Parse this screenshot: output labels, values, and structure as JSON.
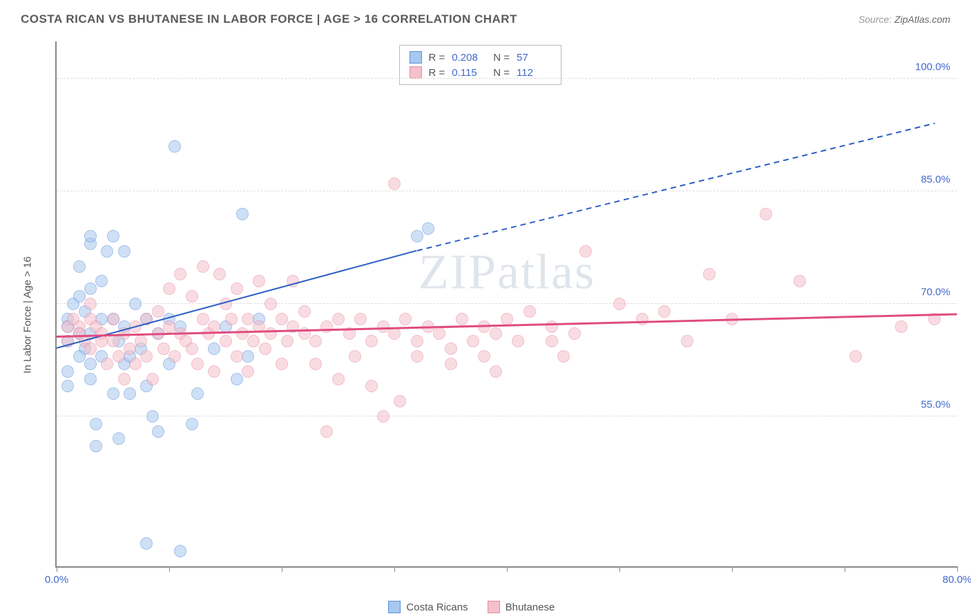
{
  "header": {
    "title": "COSTA RICAN VS BHUTANESE IN LABOR FORCE | AGE > 16 CORRELATION CHART",
    "source_label": "Source:",
    "source_value": "ZipAtlas.com"
  },
  "chart": {
    "type": "scatter",
    "ylabel": "In Labor Force | Age > 16",
    "background_color": "#ffffff",
    "grid_color": "#dddddd",
    "grid_dash": true,
    "axis_color": "#888888",
    "xlim": [
      0,
      80
    ],
    "ylim": [
      35,
      105
    ],
    "ytick_values": [
      55,
      70,
      85,
      100
    ],
    "ytick_labels": [
      "55.0%",
      "70.0%",
      "85.0%",
      "100.0%"
    ],
    "xtick_values": [
      0,
      10,
      20,
      30,
      40,
      50,
      60,
      70,
      80
    ],
    "xtick_labels_shown": {
      "0": "0.0%",
      "80": "80.0%"
    },
    "point_radius": 9,
    "point_opacity": 0.55,
    "label_fontsize": 15,
    "tick_color": "#4169cc",
    "series": [
      {
        "name": "Costa Ricans",
        "fill_color": "#a8c8f0",
        "stroke_color": "#5a8fd6",
        "R": "0.208",
        "N": "57",
        "trend": {
          "x1": 0,
          "y1": 64,
          "x2_solid": 32,
          "y2_solid": 77,
          "x2_dash": 78,
          "y2_dash": 94,
          "color": "#2d5fc4",
          "width": 2
        },
        "points": [
          [
            1,
            68
          ],
          [
            1,
            67
          ],
          [
            1,
            65
          ],
          [
            1.5,
            70
          ],
          [
            2,
            66
          ],
          [
            2,
            71
          ],
          [
            2,
            75
          ],
          [
            2.5,
            69
          ],
          [
            2.5,
            64
          ],
          [
            3,
            78
          ],
          [
            3,
            79
          ],
          [
            3,
            72
          ],
          [
            3,
            66
          ],
          [
            3,
            60
          ],
          [
            3.5,
            54
          ],
          [
            3.5,
            51
          ],
          [
            4,
            68
          ],
          [
            4,
            73
          ],
          [
            4.5,
            77
          ],
          [
            5,
            79
          ],
          [
            5,
            68
          ],
          [
            5,
            58
          ],
          [
            5.5,
            52
          ],
          [
            5.5,
            65
          ],
          [
            6,
            77
          ],
          [
            6,
            67
          ],
          [
            6,
            62
          ],
          [
            6.5,
            58
          ],
          [
            7,
            70
          ],
          [
            7.5,
            64
          ],
          [
            8,
            68
          ],
          [
            8,
            59
          ],
          [
            8.5,
            55
          ],
          [
            9,
            53
          ],
          [
            9,
            66
          ],
          [
            10,
            68
          ],
          [
            10,
            62
          ],
          [
            10.5,
            91
          ],
          [
            11,
            67
          ],
          [
            12,
            54
          ],
          [
            12.5,
            58
          ],
          [
            14,
            64
          ],
          [
            15,
            67
          ],
          [
            16,
            60
          ],
          [
            16.5,
            82
          ],
          [
            17,
            63
          ],
          [
            18,
            68
          ],
          [
            11,
            37
          ],
          [
            8,
            38
          ],
          [
            1,
            61
          ],
          [
            1,
            59
          ],
          [
            2,
            63
          ],
          [
            4,
            63
          ],
          [
            6.5,
            63
          ],
          [
            3,
            62
          ],
          [
            32,
            79
          ],
          [
            33,
            80
          ]
        ]
      },
      {
        "name": "Bhutanese",
        "fill_color": "#f5c0cc",
        "stroke_color": "#e58aa3",
        "R": "0.115",
        "N": "112",
        "trend": {
          "x1": 0,
          "y1": 65.5,
          "x2_solid": 80,
          "y2_solid": 68.5,
          "color": "#e04c7e",
          "width": 2.5
        },
        "points": [
          [
            1,
            67
          ],
          [
            1,
            65
          ],
          [
            1.5,
            68
          ],
          [
            2,
            67
          ],
          [
            2,
            66
          ],
          [
            2.5,
            65
          ],
          [
            3,
            68
          ],
          [
            3,
            70
          ],
          [
            3,
            64
          ],
          [
            3.5,
            67
          ],
          [
            4,
            66
          ],
          [
            4,
            65
          ],
          [
            4.5,
            62
          ],
          [
            5,
            68
          ],
          [
            5,
            65
          ],
          [
            5.5,
            63
          ],
          [
            6,
            66
          ],
          [
            6,
            60
          ],
          [
            6.5,
            64
          ],
          [
            7,
            67
          ],
          [
            7,
            62
          ],
          [
            7.5,
            65
          ],
          [
            8,
            68
          ],
          [
            8,
            63
          ],
          [
            8.5,
            60
          ],
          [
            9,
            66
          ],
          [
            9,
            69
          ],
          [
            9.5,
            64
          ],
          [
            10,
            67
          ],
          [
            10,
            72
          ],
          [
            10.5,
            63
          ],
          [
            11,
            66
          ],
          [
            11,
            74
          ],
          [
            11.5,
            65
          ],
          [
            12,
            71
          ],
          [
            12,
            64
          ],
          [
            12.5,
            62
          ],
          [
            13,
            68
          ],
          [
            13,
            75
          ],
          [
            13.5,
            66
          ],
          [
            14,
            67
          ],
          [
            14,
            61
          ],
          [
            14.5,
            74
          ],
          [
            15,
            70
          ],
          [
            15,
            65
          ],
          [
            15.5,
            68
          ],
          [
            16,
            72
          ],
          [
            16,
            63
          ],
          [
            16.5,
            66
          ],
          [
            17,
            68
          ],
          [
            17,
            61
          ],
          [
            17.5,
            65
          ],
          [
            18,
            67
          ],
          [
            18,
            73
          ],
          [
            18.5,
            64
          ],
          [
            19,
            66
          ],
          [
            19,
            70
          ],
          [
            20,
            68
          ],
          [
            20,
            62
          ],
          [
            20.5,
            65
          ],
          [
            21,
            67
          ],
          [
            21,
            73
          ],
          [
            22,
            66
          ],
          [
            22,
            69
          ],
          [
            23,
            65
          ],
          [
            23,
            62
          ],
          [
            24,
            67
          ],
          [
            24,
            53
          ],
          [
            25,
            68
          ],
          [
            25,
            60
          ],
          [
            26,
            66
          ],
          [
            26.5,
            63
          ],
          [
            27,
            68
          ],
          [
            28,
            65
          ],
          [
            28,
            59
          ],
          [
            29,
            67
          ],
          [
            29,
            55
          ],
          [
            30,
            66
          ],
          [
            30,
            86
          ],
          [
            30.5,
            57
          ],
          [
            31,
            68
          ],
          [
            32,
            65
          ],
          [
            32,
            63
          ],
          [
            33,
            67
          ],
          [
            34,
            66
          ],
          [
            35,
            64
          ],
          [
            35,
            62
          ],
          [
            36,
            68
          ],
          [
            37,
            65
          ],
          [
            38,
            63
          ],
          [
            38,
            67
          ],
          [
            39,
            66
          ],
          [
            39,
            61
          ],
          [
            40,
            68
          ],
          [
            41,
            65
          ],
          [
            42,
            69
          ],
          [
            44,
            67
          ],
          [
            44,
            65
          ],
          [
            45,
            63
          ],
          [
            46,
            66
          ],
          [
            47,
            77
          ],
          [
            50,
            70
          ],
          [
            52,
            68
          ],
          [
            54,
            69
          ],
          [
            56,
            65
          ],
          [
            58,
            74
          ],
          [
            60,
            68
          ],
          [
            63,
            82
          ],
          [
            66,
            73
          ],
          [
            71,
            63
          ],
          [
            75,
            67
          ],
          [
            78,
            68
          ]
        ]
      }
    ],
    "watermark": {
      "text": "ZIPatlas",
      "color": "rgba(130,150,180,0.25)",
      "fontsize": 72
    }
  },
  "legend": {
    "items": [
      {
        "label": "Costa Ricans",
        "fill": "#a8c8f0",
        "stroke": "#5a8fd6"
      },
      {
        "label": "Bhutanese",
        "fill": "#f5c0cc",
        "stroke": "#e58aa3"
      }
    ]
  }
}
